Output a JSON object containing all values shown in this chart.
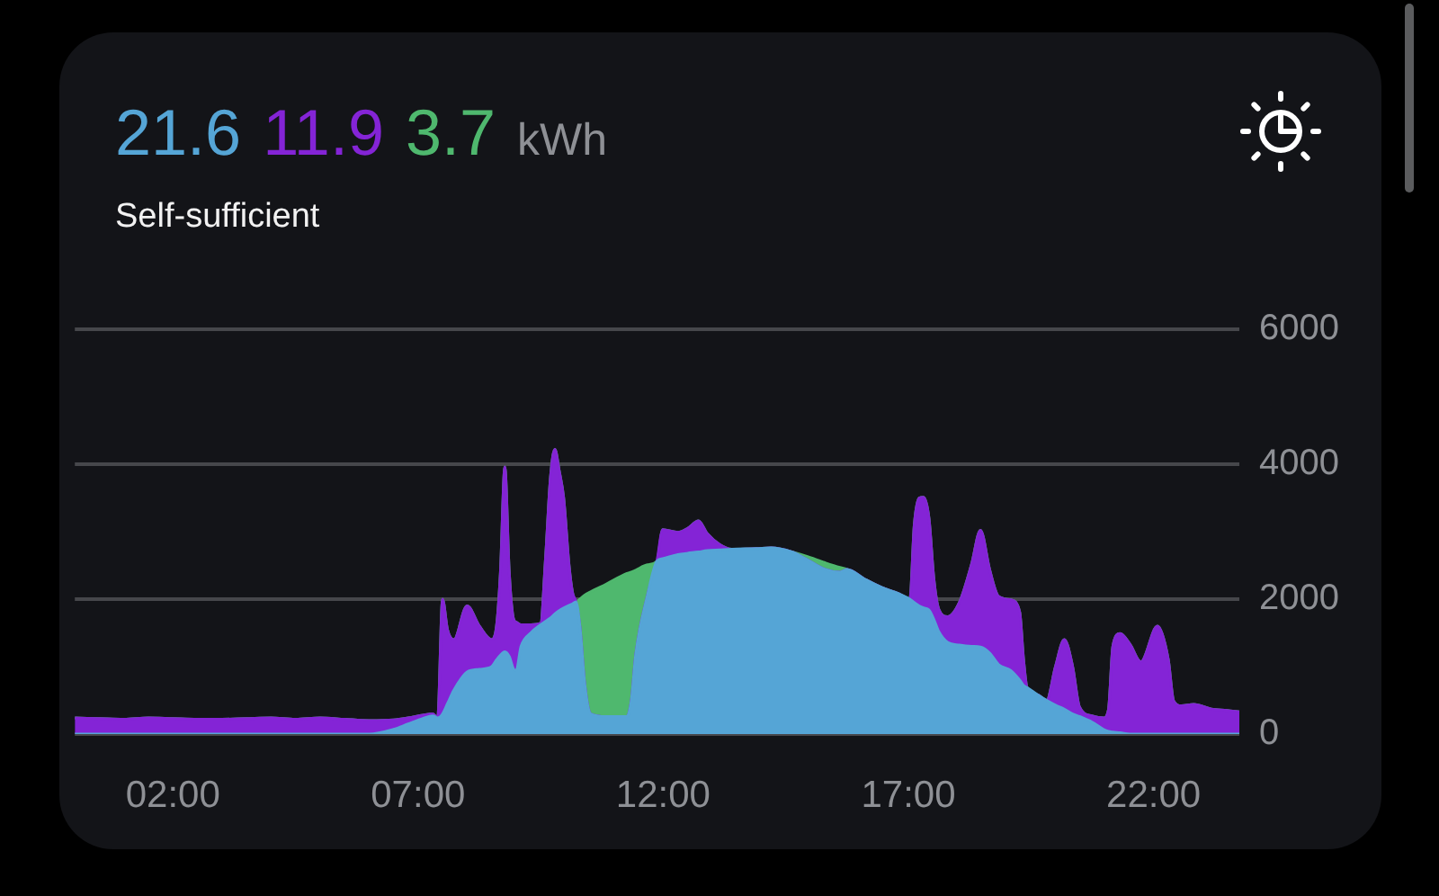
{
  "chart_data": {
    "type": "area",
    "title": "21.6 11.9 3.7 kWh",
    "subtitle": "Self-sufficient",
    "x": [
      0,
      0.5,
      1,
      1.5,
      2,
      2.5,
      3,
      3.5,
      4,
      4.5,
      5,
      5.5,
      6,
      6.5,
      6.8,
      7.1,
      7.3,
      7.4,
      7.5,
      7.6,
      7.73,
      8,
      8.25,
      8.5,
      8.6,
      8.68,
      8.77,
      8.86,
      8.95,
      9,
      9.1,
      9.3,
      9.5,
      9.6,
      9.7,
      9.79,
      9.88,
      9.97,
      10.08,
      10.15,
      10.22,
      10.3,
      10.4,
      10.52,
      10.83,
      11.26,
      11.35,
      11.44,
      11.68,
      11.87,
      11.99,
      12.3,
      12.5,
      12.72,
      12.9,
      13.15,
      13.4,
      13.9,
      14.2,
      14.62,
      14.9,
      15.3,
      15.6,
      15.75,
      16.1,
      16.46,
      16.8,
      17.03,
      17.12,
      17.22,
      17.31,
      17.42,
      17.52,
      17.62,
      17.8,
      18.04,
      18.29,
      18.47,
      18.66,
      18.84,
      19.09,
      19.27,
      19.35,
      19.42,
      19.64,
      19.82,
      20,
      20.18,
      20.35,
      20.49,
      20.74,
      20.98,
      21.08,
      21.17,
      21.32,
      21.52,
      21.74,
      22.08,
      22.3,
      22.41,
      22.57,
      22.82,
      23.18,
      23.5,
      23.75
    ],
    "series": [
      {
        "color": "#55a5d6",
        "values": [
          0,
          0,
          0,
          0,
          0,
          0,
          0,
          0,
          0,
          0,
          0,
          0,
          0,
          70,
          150,
          230,
          270,
          240,
          300,
          450,
          650,
          920,
          960,
          1000,
          1100,
          1170,
          1220,
          1150,
          960,
          940,
          1300,
          1500,
          1620,
          1670,
          1720,
          1780,
          1830,
          1870,
          1910,
          1930,
          1960,
          1600,
          740,
          300,
          260,
          260,
          500,
          1180,
          2060,
          2560,
          2600,
          2660,
          2680,
          2700,
          2720,
          2730,
          2740,
          2750,
          2760,
          2700,
          2600,
          2440,
          2400,
          2440,
          2300,
          2170,
          2080,
          2000,
          1950,
          1900,
          1870,
          1840,
          1700,
          1520,
          1360,
          1320,
          1300,
          1290,
          1200,
          1030,
          940,
          800,
          720,
          690,
          580,
          500,
          430,
          370,
          300,
          260,
          180,
          70,
          40,
          30,
          20,
          0,
          0,
          0,
          0,
          0,
          0,
          0,
          0,
          0,
          0
        ]
      },
      {
        "color": "#8424d6",
        "values": [
          240,
          230,
          220,
          240,
          230,
          220,
          220,
          230,
          240,
          220,
          240,
          220,
          200,
          140,
          90,
          50,
          30,
          0,
          1700,
          1100,
          750,
          980,
          640,
          400,
          500,
          1230,
          2740,
          1250,
          740,
          720,
          320,
          120,
          20,
          940,
          2080,
          2440,
          2070,
          1630,
          590,
          170,
          0,
          0,
          0,
          0,
          0,
          0,
          0,
          0,
          0,
          0,
          430,
          330,
          370,
          460,
          250,
          80,
          0,
          0,
          0,
          0,
          0,
          0,
          0,
          0,
          0,
          0,
          0,
          0,
          1150,
          1600,
          1640,
          1360,
          600,
          330,
          380,
          630,
          1220,
          1730,
          1230,
          1010,
          1050,
          1010,
          380,
          0,
          0,
          0,
          570,
          1030,
          700,
          140,
          90,
          170,
          320,
          1270,
          1470,
          1330,
          1070,
          1600,
          1110,
          490,
          420,
          440,
          370,
          350,
          330
        ]
      },
      {
        "color": "#4fb86e",
        "values": [
          0,
          0,
          0,
          0,
          0,
          0,
          0,
          0,
          0,
          0,
          0,
          0,
          0,
          0,
          0,
          0,
          0,
          0,
          0,
          0,
          0,
          0,
          0,
          0,
          0,
          0,
          0,
          0,
          0,
          0,
          0,
          0,
          0,
          0,
          0,
          0,
          0,
          0,
          0,
          0,
          0,
          400,
          1320,
          1810,
          1960,
          2120,
          1900,
          1250,
          450,
          0,
          0,
          0,
          0,
          0,
          0,
          0,
          0,
          0,
          0,
          0,
          40,
          100,
          70,
          0,
          0,
          0,
          0,
          0,
          0,
          0,
          0,
          0,
          0,
          0,
          0,
          0,
          0,
          0,
          0,
          0,
          0,
          0,
          0,
          0,
          0,
          0,
          0,
          0,
          0,
          0,
          0,
          0,
          0,
          0,
          0,
          0,
          0,
          0,
          0,
          0,
          0,
          0,
          0,
          0,
          0
        ]
      }
    ],
    "stacked": true,
    "xlim": [
      0,
      23.75
    ],
    "xticks": [
      {
        "value": 2,
        "label": "02:00"
      },
      {
        "value": 7,
        "label": "07:00"
      },
      {
        "value": 12,
        "label": "12:00"
      },
      {
        "value": 17,
        "label": "17:00"
      },
      {
        "value": 22,
        "label": "22:00"
      }
    ],
    "ylim": [
      0,
      6000
    ],
    "yticks": [
      0,
      2000,
      4000,
      6000
    ],
    "grid": "y",
    "legend": false,
    "marker": "none"
  }
}
